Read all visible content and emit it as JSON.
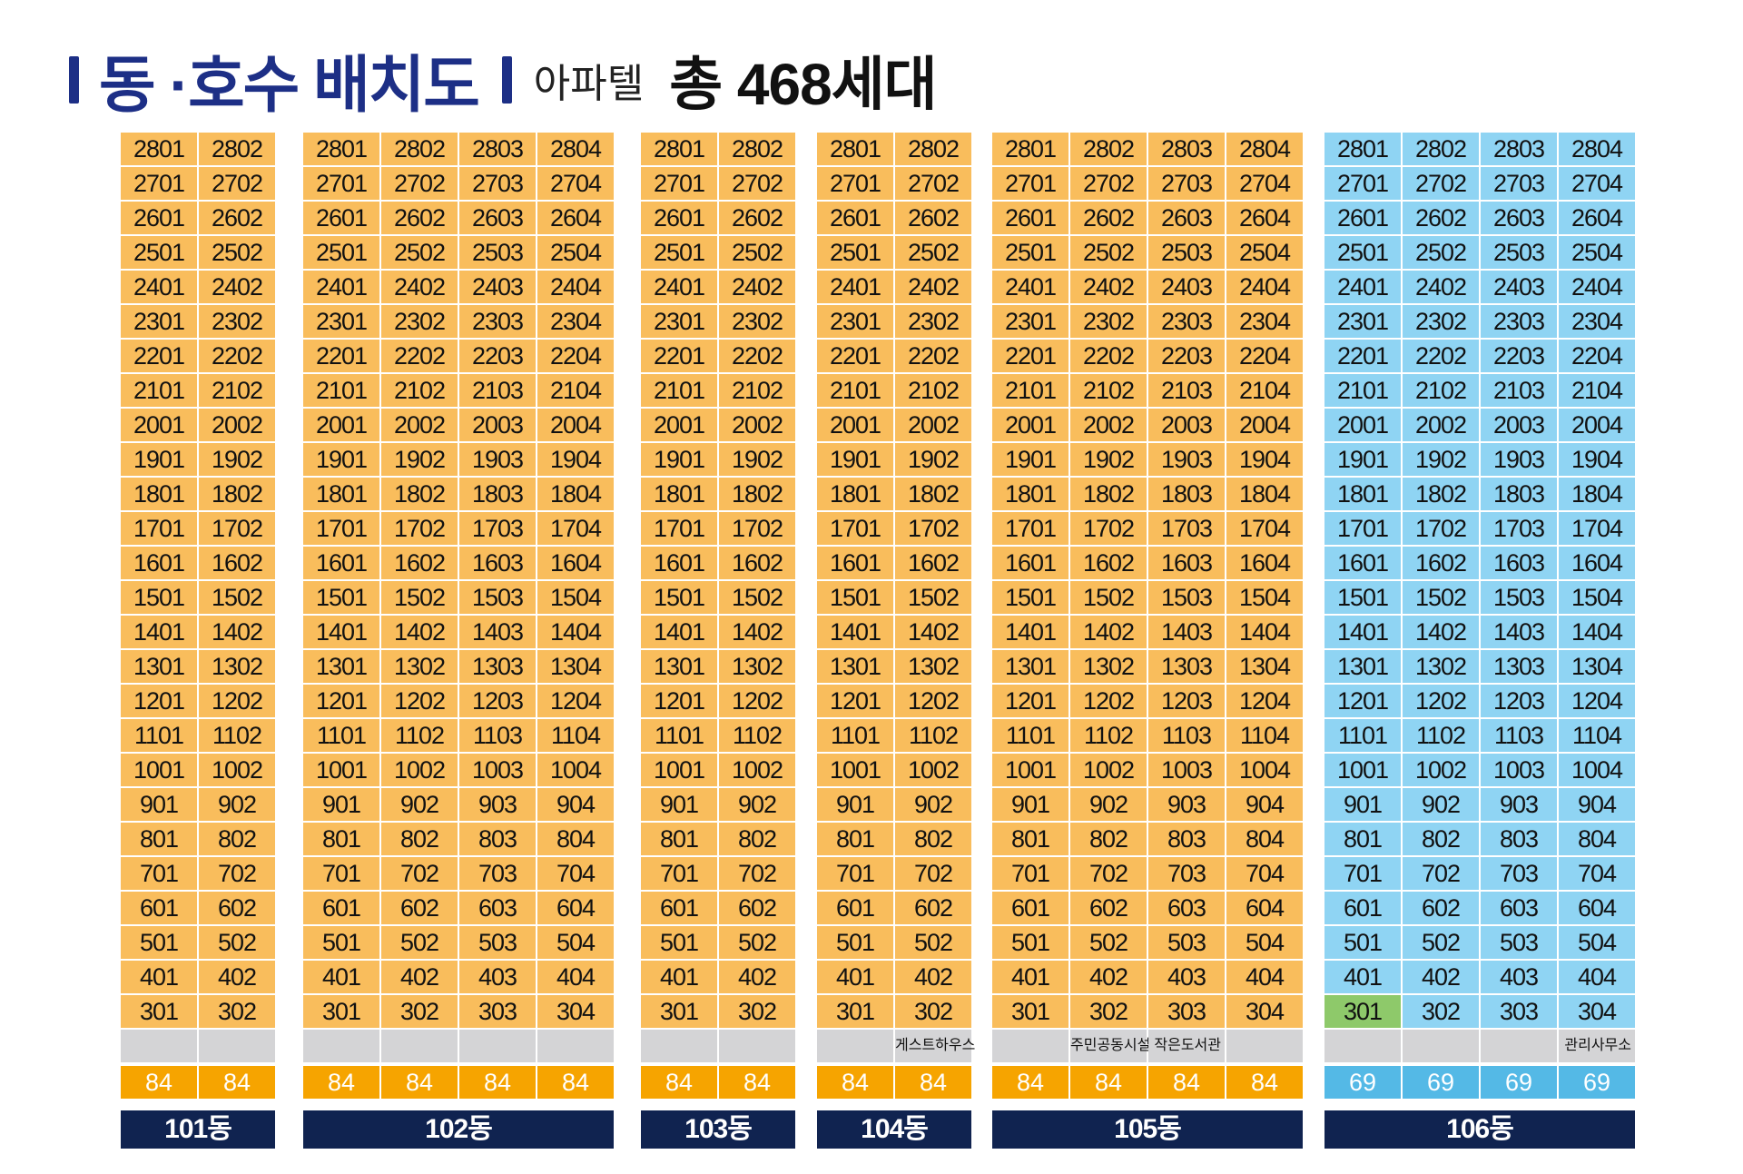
{
  "header": {
    "title": "동 ·호수 배치도",
    "type": "아파텔",
    "total": "총 468세대"
  },
  "floors": [
    28,
    27,
    26,
    25,
    24,
    23,
    22,
    21,
    20,
    19,
    18,
    17,
    16,
    15,
    14,
    13,
    12,
    11,
    10,
    9,
    8,
    7,
    6,
    5,
    4,
    3
  ],
  "buildings": [
    {
      "id": "b101",
      "label": "101동",
      "lines": 2,
      "theme": "orange",
      "sizes": [
        "84",
        "84"
      ],
      "facilities": [
        "",
        ""
      ],
      "highlight": []
    },
    {
      "id": "b102",
      "label": "102동",
      "lines": 4,
      "theme": "orange",
      "sizes": [
        "84",
        "84",
        "84",
        "84"
      ],
      "facilities": [
        "",
        "",
        "",
        ""
      ],
      "highlight": []
    },
    {
      "id": "b103",
      "label": "103동",
      "lines": 2,
      "theme": "orange",
      "sizes": [
        "84",
        "84"
      ],
      "facilities": [
        "",
        ""
      ],
      "highlight": []
    },
    {
      "id": "b104",
      "label": "104동",
      "lines": 2,
      "theme": "orange",
      "sizes": [
        "84",
        "84"
      ],
      "facilities": [
        "",
        "게스트하우스"
      ],
      "highlight": []
    },
    {
      "id": "b105",
      "label": "105동",
      "lines": 4,
      "theme": "orange",
      "sizes": [
        "84",
        "84",
        "84",
        "84"
      ],
      "facilities": [
        "",
        "주민공동시설",
        "작은도서관",
        ""
      ],
      "highlight": []
    },
    {
      "id": "b106",
      "label": "106동",
      "lines": 4,
      "theme": "blue",
      "sizes": [
        "69",
        "69",
        "69",
        "69"
      ],
      "facilities": [
        "",
        "",
        "",
        "관리사무소"
      ],
      "highlight": [
        "301"
      ]
    }
  ],
  "colors": {
    "title": "#1d2f86",
    "unit_84": "#f9bd5c",
    "unit_69": "#8fd4f3",
    "highlight_unit": "#8ec96a",
    "facility": "#d4d4d6",
    "size_84": "#f6a400",
    "size_69": "#54b9e6",
    "building_label": "#102350"
  }
}
